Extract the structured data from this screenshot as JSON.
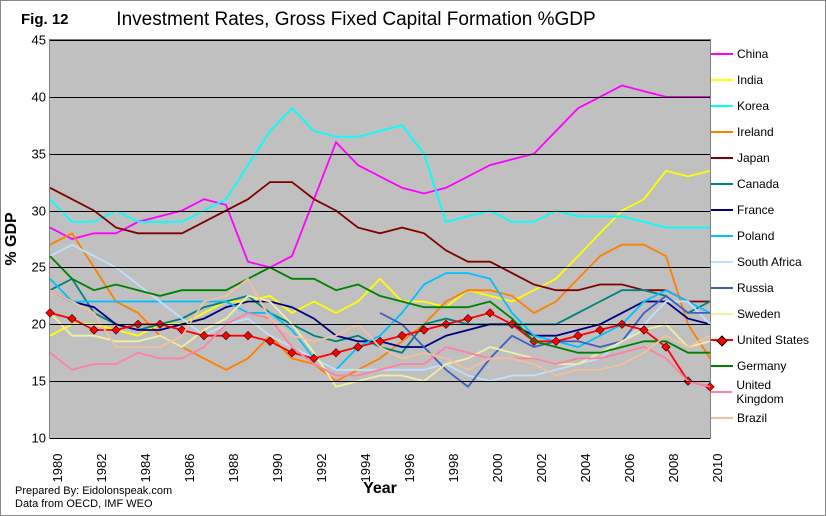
{
  "figure_label": "Fig. 12",
  "title": "Investment Rates, Gross Fixed Capital Formation %GDP",
  "footer_line1": "Prepared By: Eidolonspeak.com",
  "footer_line2": "Data from OECD, IMF WEO",
  "x_axis_title": "Year",
  "y_axis_title": "% GDP",
  "chart": {
    "type": "line",
    "plot_bg": "#c0c0c0",
    "page_bg": "#ffffff",
    "grid_color": "#000000",
    "xlim": [
      1980,
      2010
    ],
    "ylim": [
      10,
      45
    ],
    "ytick_step": 5,
    "xtick_step": 2,
    "yticks": [
      10,
      15,
      20,
      25,
      30,
      35,
      40,
      45
    ],
    "xticks": [
      1980,
      1982,
      1984,
      1986,
      1988,
      1990,
      1992,
      1994,
      1996,
      1998,
      2000,
      2002,
      2004,
      2006,
      2008,
      2010
    ],
    "title_fontsize": 19,
    "label_fontsize": 16,
    "tick_fontsize": 13,
    "legend_fontsize": 12,
    "line_width": 1.8,
    "series": [
      {
        "name": "China",
        "color": "#ff00ff",
        "marker": false,
        "y": [
          28.5,
          27.5,
          28,
          28,
          29,
          29.5,
          30,
          31,
          30.5,
          25.5,
          25,
          26,
          31,
          36,
          34,
          33,
          32,
          31.5,
          32,
          33,
          34,
          34.5,
          35,
          37,
          39,
          40,
          41,
          40.5,
          40,
          40,
          40
        ]
      },
      {
        "name": "India",
        "color": "#ffff00",
        "marker": false,
        "y": [
          19,
          20,
          20,
          19.5,
          19,
          20,
          20,
          21,
          22,
          22,
          22.5,
          21,
          22,
          21,
          22,
          24,
          22,
          22,
          21.5,
          23,
          22.5,
          22,
          23,
          24,
          26,
          28,
          30,
          31,
          33.5,
          33,
          33.5
        ]
      },
      {
        "name": "Korea",
        "color": "#00ffff",
        "marker": false,
        "y": [
          31,
          29,
          29,
          30,
          29,
          29,
          29,
          30,
          31,
          34,
          37,
          39,
          37,
          36.5,
          36.5,
          37,
          37.5,
          35,
          29,
          29.5,
          30,
          29,
          29,
          30,
          29.5,
          29.5,
          29.5,
          29,
          28.5,
          28.5,
          28.5
        ]
      },
      {
        "name": "Ireland",
        "color": "#ff8000",
        "marker": false,
        "y": [
          27,
          28,
          25,
          22,
          21,
          19,
          18,
          17,
          16,
          17,
          19,
          17,
          16.5,
          15,
          16,
          17,
          18.5,
          20,
          22,
          23,
          23,
          22.5,
          21,
          22,
          24,
          26,
          27,
          27,
          26,
          20,
          17
        ]
      },
      {
        "name": "Japan",
        "color": "#800000",
        "marker": false,
        "y": [
          32,
          31,
          30,
          28.5,
          28,
          28,
          28,
          29,
          30,
          31,
          32.5,
          32.5,
          31,
          30,
          28.5,
          28,
          28.5,
          28,
          26.5,
          25.5,
          25.5,
          24.5,
          23.5,
          23,
          23,
          23.5,
          23.5,
          23,
          23,
          22,
          22
        ]
      },
      {
        "name": "Canada",
        "color": "#008080",
        "marker": false,
        "y": [
          23,
          24,
          21,
          20,
          19.5,
          20,
          20.5,
          21.5,
          22,
          22.5,
          21,
          20,
          19,
          18.5,
          19,
          18,
          17.5,
          20,
          20.5,
          20,
          20,
          20,
          20,
          20,
          21,
          22,
          23,
          23,
          22.5,
          21,
          22
        ]
      },
      {
        "name": "France",
        "color": "#000080",
        "marker": false,
        "y": [
          23,
          22,
          21.5,
          20,
          19.5,
          19.5,
          20,
          20.5,
          21.5,
          22,
          22,
          21.5,
          20.5,
          19,
          18.5,
          18.5,
          18,
          18,
          19,
          19.5,
          20,
          20,
          19,
          19,
          19.5,
          20,
          21,
          22,
          22,
          20.5,
          20
        ]
      },
      {
        "name": "Poland",
        "color": "#00c0ff",
        "marker": false,
        "y": [
          24,
          22,
          22,
          22,
          22,
          22,
          22,
          22,
          22,
          21,
          21,
          19.5,
          17,
          16,
          18,
          19,
          21,
          23.5,
          24.5,
          24.5,
          24,
          21,
          19,
          18.5,
          18,
          19,
          20,
          22,
          23,
          22,
          21
        ]
      },
      {
        "name": "South Africa",
        "color": "#c0e0ff",
        "marker": false,
        "y": [
          26,
          27,
          26,
          25,
          23.5,
          22,
          20.5,
          19,
          20,
          20.5,
          19,
          18,
          17,
          16,
          16,
          16,
          16,
          16,
          16.5,
          15.5,
          15,
          15.5,
          15.5,
          16,
          16.5,
          17,
          18.5,
          20,
          22,
          22,
          20
        ]
      },
      {
        "name": "Russia",
        "color": "#4060c0",
        "marker": false,
        "y": [
          null,
          null,
          null,
          null,
          null,
          null,
          null,
          null,
          null,
          null,
          null,
          null,
          null,
          null,
          null,
          21,
          20,
          18,
          16,
          14.5,
          17,
          19,
          18,
          18.5,
          18.5,
          18,
          18.5,
          21,
          22.5,
          21,
          21
        ]
      },
      {
        "name": "Sweden",
        "color": "#f0f0a0",
        "marker": false,
        "y": [
          21,
          19,
          19,
          18.5,
          18.5,
          19,
          18,
          19.5,
          20.5,
          22.5,
          22,
          20,
          17.5,
          14.5,
          15,
          15.5,
          15.5,
          15,
          16.5,
          17,
          18,
          17.5,
          17,
          16.5,
          16.5,
          17.5,
          18.5,
          19.5,
          20,
          18,
          18.5
        ]
      },
      {
        "name": "United States",
        "color": "#ff0000",
        "marker": true,
        "y": [
          21,
          20.5,
          19.5,
          19.5,
          20,
          20,
          19.5,
          19,
          19,
          19,
          18.5,
          17.5,
          17,
          17.5,
          18,
          18.5,
          19,
          19.5,
          20,
          20.5,
          21,
          20,
          18.5,
          18.5,
          19,
          19.5,
          20,
          19.5,
          18,
          15,
          14.5
        ]
      },
      {
        "name": "Germany",
        "color": "#008000",
        "marker": false,
        "y": [
          26,
          24,
          23,
          23.5,
          23,
          22.5,
          23,
          23,
          23,
          24,
          25,
          24,
          24,
          23,
          23.5,
          22.5,
          22,
          21.5,
          21.5,
          21.5,
          22,
          20.5,
          18.5,
          18,
          17.5,
          17.5,
          18,
          18.5,
          18.5,
          17.5,
          17.5
        ]
      },
      {
        "name": "United Kingdom",
        "color": "#ff80a0",
        "marker": false,
        "y": [
          17.5,
          16,
          16.5,
          16.5,
          17.5,
          17,
          17,
          18,
          20,
          21,
          20.5,
          18,
          16.5,
          15.5,
          15.5,
          16,
          16.5,
          16.5,
          18,
          17.5,
          17,
          17,
          17,
          16.5,
          17,
          17,
          17.5,
          18,
          17,
          15,
          14.5
        ]
      },
      {
        "name": "Brazil",
        "color": "#f0c0a0",
        "marker": false,
        "y": [
          23,
          22,
          21,
          18,
          18,
          18,
          19,
          22,
          22.5,
          24,
          20.5,
          19,
          18.5,
          19,
          20,
          18,
          17,
          17.5,
          17,
          16,
          17,
          17,
          16.5,
          15.5,
          16,
          16,
          16.5,
          17.5,
          19,
          18,
          19
        ]
      }
    ]
  }
}
